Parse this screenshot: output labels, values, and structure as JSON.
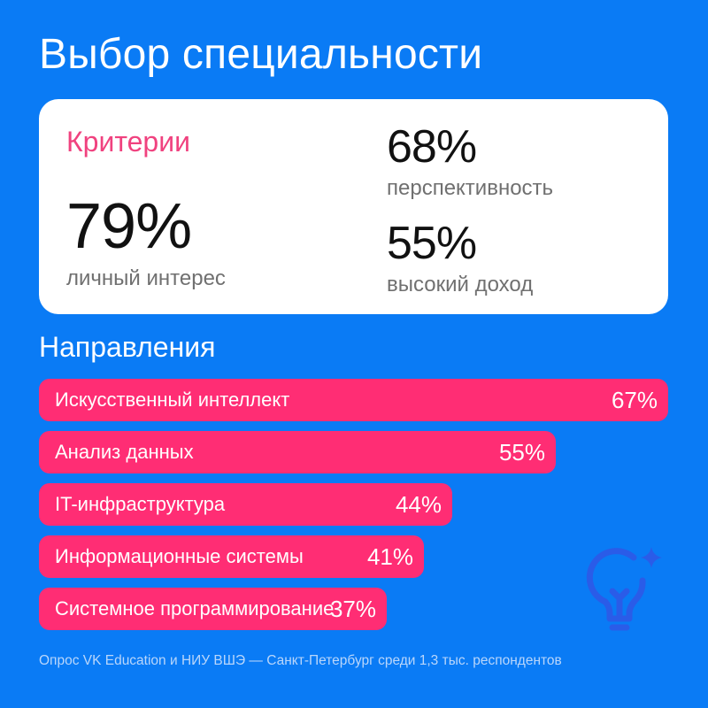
{
  "title": "Выбор специальности",
  "criteria": {
    "heading": "Критерии",
    "main": {
      "value": "79%",
      "label": "личный интерес"
    },
    "items": [
      {
        "value": "68%",
        "label": "перспективность"
      },
      {
        "value": "55%",
        "label": "высокий доход"
      }
    ]
  },
  "directions_title": "Направления",
  "chart_data": {
    "type": "bar",
    "orientation": "horizontal",
    "title": "Направления",
    "categories": [
      "Искусственный интеллект",
      "Анализ данных",
      "IT-инфраструктура",
      "Информационные системы",
      "Системное программирование"
    ],
    "values": [
      67,
      55,
      44,
      41,
      37
    ],
    "value_labels": [
      "67%",
      "55%",
      "44%",
      "41%",
      "37%"
    ],
    "xlim": [
      0,
      67
    ],
    "grid": false,
    "legend": "none"
  },
  "footer": "Опрос VK Education и НИУ ВШЭ — Санкт-Петербург среди 1,3 тыс. респондентов",
  "decor": {
    "icon": "lightbulb-sparkle-icon"
  },
  "colors": {
    "background": "#0a7bf5",
    "accent": "#ff2d74",
    "heading_accent": "#f0427f",
    "card": "#ffffff",
    "footer_text": "#b9d6fb",
    "icon": "#2a5ce8"
  }
}
